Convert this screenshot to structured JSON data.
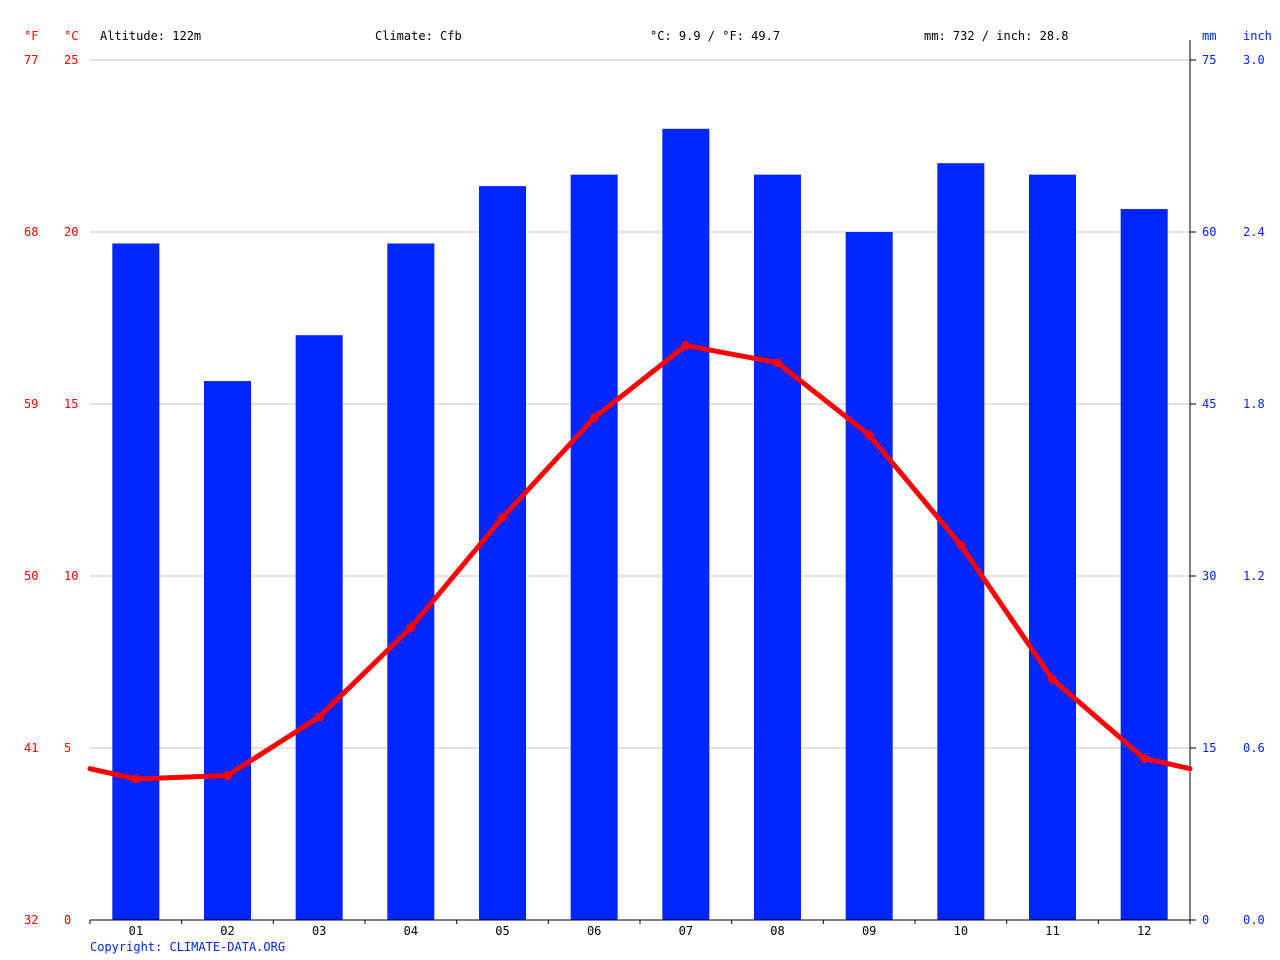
{
  "header": {
    "unit_f": "°F",
    "unit_c": "°C",
    "altitude": "Altitude: 122m",
    "climate": "Climate: Cfb",
    "temp_summary": "°C: 9.9 / °F: 49.7",
    "precip_summary": "mm: 732 / inch: 28.8",
    "unit_mm": "mm",
    "unit_inch": "inch"
  },
  "copyright": "Copyright: CLIMATE-DATA.ORG",
  "colors": {
    "temperature": "#ff0000",
    "precipitation": "#0026ff",
    "grid": "#c8c8c8"
  },
  "chart_data": {
    "type": "bar",
    "categories": [
      "01",
      "02",
      "03",
      "04",
      "05",
      "06",
      "07",
      "08",
      "09",
      "10",
      "11",
      "12"
    ],
    "series": [
      {
        "type": "bar",
        "axis": "right",
        "unit": "mm",
        "values": [
          59,
          47,
          51,
          59,
          64,
          65,
          69,
          65,
          60,
          66,
          65,
          62
        ]
      },
      {
        "type": "line",
        "axis": "left",
        "unit": "°C",
        "values": [
          4.1,
          4.2,
          5.9,
          8.5,
          11.7,
          14.6,
          16.7,
          16.2,
          14.1,
          10.9,
          7.0,
          4.7
        ]
      }
    ],
    "left_axis_c": {
      "ticks": [
        "0",
        "5",
        "10",
        "15",
        "20",
        "25"
      ],
      "ylim": [
        0,
        25
      ]
    },
    "left_axis_f": {
      "ticks": [
        "32",
        "41",
        "50",
        "59",
        "68",
        "77"
      ]
    },
    "right_axis_mm": {
      "ticks": [
        "0",
        "15",
        "30",
        "45",
        "60",
        "75"
      ],
      "ylim": [
        0,
        75
      ]
    },
    "right_axis_inch": {
      "ticks": [
        "0.0",
        "0.6",
        "1.2",
        "1.8",
        "2.4",
        "3.0"
      ]
    },
    "grid": true
  }
}
